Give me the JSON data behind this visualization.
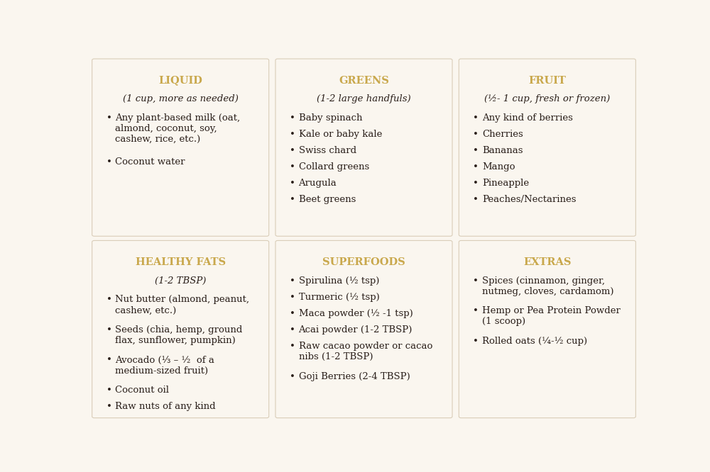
{
  "background_color": "#faf6ef",
  "cell_bg_color": "#faf6ef",
  "divider_color": "#d9cdb8",
  "title_color": "#c9a84c",
  "body_color": "#2a1f1a",
  "title_fontsize": 10.5,
  "subtitle_fontsize": 9.5,
  "body_fontsize": 9.5,
  "cells": [
    {
      "title": "LIQUID",
      "subtitle": "(1 cup, more as needed)",
      "items": [
        "Any plant-based milk (oat,\nalmond, coconut, soy,\ncashew, rice, etc.)",
        "Coconut water"
      ]
    },
    {
      "title": "GREENS",
      "subtitle": "(1-2 large handfuls)",
      "items": [
        "Baby spinach",
        "Kale or baby kale",
        "Swiss chard",
        "Collard greens",
        "Arugula",
        "Beet greens"
      ]
    },
    {
      "title": "FRUIT",
      "subtitle": "(½- 1 cup, fresh or frozen)",
      "items": [
        "Any kind of berries",
        "Cherries",
        "Bananas",
        "Mango",
        "Pineapple",
        "Peaches/Nectarines"
      ]
    },
    {
      "title": "HEALTHY FATS",
      "subtitle": "(1-2 TBSP)",
      "items": [
        "Nut butter (almond, peanut,\ncashew, etc.)",
        "Seeds (chia, hemp, ground\nflax, sunflower, pumpkin)",
        "Avocado (⅓ – ½  of a\nmedium-sized fruit)",
        "Coconut oil",
        "Raw nuts of any kind"
      ]
    },
    {
      "title": "SUPERFOODS",
      "subtitle": "",
      "items": [
        "Spirulina (½ tsp)",
        "Turmeric (½ tsp)",
        "Maca powder (½ -1 tsp)",
        "Acai powder (1-2 TBSP)",
        "Raw cacao powder or cacao\nnibs (1-2 TBSP)",
        "Goji Berries (2-4 TBSP)"
      ]
    },
    {
      "title": "EXTRAS",
      "subtitle": "",
      "items": [
        "Spices (cinnamon, ginger,\nnutmeg, cloves, cardamom)",
        "Hemp or Pea Protein Powder\n(1 scoop)",
        "Rolled oats (¼-½ cup)"
      ]
    }
  ]
}
